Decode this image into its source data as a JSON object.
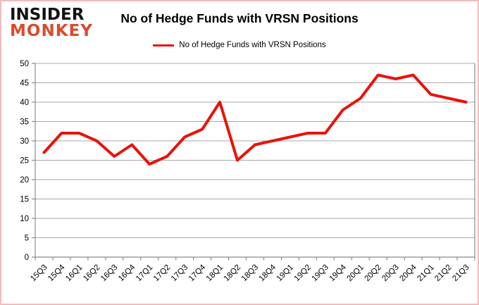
{
  "logo": {
    "line1": "INSIDER",
    "line2": "MONKEY"
  },
  "header": {
    "title": "No of Hedge Funds with VRSN Positions"
  },
  "legend": {
    "label": "No of Hedge Funds with VRSN Positions"
  },
  "colors": {
    "series_red": "#e8130b",
    "logo_red": "#d84b2d",
    "logo_black": "#121212",
    "frame_border_pink": "#f3bcbc",
    "gridline_gray": "#a8a8a8",
    "axis_gray": "#8c8c8c",
    "text_black": "#000000"
  },
  "chart_data": {
    "type": "line",
    "title": "No of Hedge Funds with VRSN Positions",
    "categories": [
      "15Q3",
      "15Q4",
      "16Q1",
      "16Q2",
      "16Q3",
      "16Q4",
      "17Q1",
      "17Q2",
      "17Q3",
      "17Q4",
      "18Q1",
      "18Q2",
      "18Q3",
      "18Q4",
      "19Q1",
      "19Q2",
      "19Q3",
      "19Q4",
      "20Q1",
      "20Q2",
      "20Q3",
      "20Q4",
      "21Q1",
      "21Q2",
      "21Q3"
    ],
    "series": [
      {
        "name": "No of Hedge Funds with VRSN Positions",
        "color": "#e8130b",
        "values": [
          27,
          32,
          32,
          30,
          26,
          29,
          24,
          26,
          31,
          33,
          40,
          25,
          29,
          30,
          31,
          32,
          32,
          38,
          41,
          47,
          46,
          47,
          42,
          41,
          40
        ]
      }
    ],
    "xlabel": "",
    "ylabel": "",
    "ylim": [
      0,
      50
    ],
    "ytick_step": 5,
    "yticks": [
      0,
      5,
      10,
      15,
      20,
      25,
      30,
      35,
      40,
      45,
      50
    ],
    "grid": true,
    "legend_position": "top-center",
    "x_label_rotation_deg": -45
  }
}
